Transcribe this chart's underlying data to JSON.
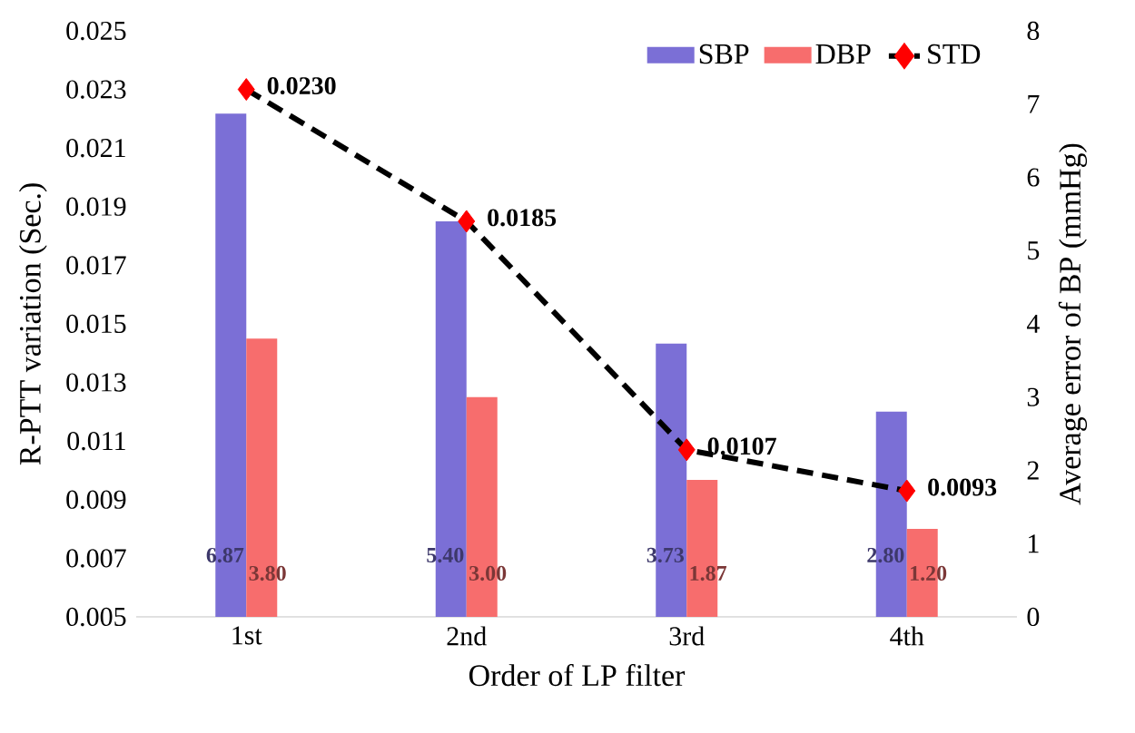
{
  "chart_data": {
    "type": "bar",
    "xlabel": "Order of LP filter",
    "ylabel": "R-PTT variation (Sec.)",
    "y2label": "Average error of BP (mmHg)",
    "categories": [
      "1st",
      "2nd",
      "3rd",
      "4th"
    ],
    "series": [
      {
        "name": "SBP",
        "axis": "y2",
        "color": "#7b6fd6",
        "values": [
          6.87,
          5.4,
          3.73,
          2.8
        ],
        "value_labels": [
          "6.87",
          "5.40",
          "3.73",
          "2.80"
        ]
      },
      {
        "name": "DBP",
        "axis": "y2",
        "color": "#f76d6d",
        "values": [
          3.8,
          3.0,
          1.87,
          1.2
        ],
        "value_labels": [
          "3.80",
          "3.00",
          "1.87",
          "1.20"
        ]
      },
      {
        "name": "STD",
        "type": "line",
        "axis": "y",
        "color": "#000000",
        "marker": "diamond",
        "line_style": "dashed",
        "values": [
          0.023,
          0.0185,
          0.0107,
          0.0093
        ],
        "value_labels": [
          "0.0230",
          "0.0185",
          "0.0107",
          "0.0093"
        ]
      }
    ],
    "ylim": [
      0.005,
      0.025
    ],
    "yticks": [
      0.005,
      0.007,
      0.009,
      0.011,
      0.013,
      0.015,
      0.017,
      0.019,
      0.021,
      0.023,
      0.025
    ],
    "y2lim": [
      0,
      8
    ],
    "y2ticks": [
      0,
      1,
      2,
      3,
      4,
      5,
      6,
      7,
      8
    ],
    "legend": "top right"
  }
}
